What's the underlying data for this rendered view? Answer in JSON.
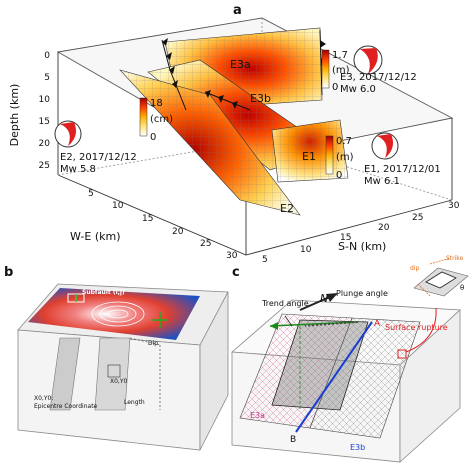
{
  "panel_a": {
    "label": "a",
    "axes": {
      "depth_label": "Depth (km)",
      "we_label": "W-E (km)",
      "sn_label": "S-N (km)",
      "depth_ticks": [
        "0",
        "5",
        "10",
        "15",
        "20",
        "25"
      ],
      "we_ticks": [
        "5",
        "10",
        "15",
        "20",
        "25",
        "30"
      ],
      "sn_ticks": [
        "5",
        "10",
        "15",
        "20",
        "25",
        "30"
      ]
    },
    "faults": {
      "e1": "E1",
      "e2": "E2",
      "e3a": "E3a",
      "e3b": "E3b"
    },
    "colorbar_e3": {
      "max": "1.7",
      "min": "0",
      "unit": "(m)"
    },
    "colorbar_e2": {
      "max": "18",
      "min": "0",
      "unit": "(cm)"
    },
    "colorbar_e1": {
      "max": "0.7",
      "min": "0",
      "unit": "(m)"
    },
    "events": {
      "e3": {
        "line1": "E3, 2017/12/12",
        "line2": "Mw 6.0"
      },
      "e2": {
        "line1": "E2, 2017/12/12",
        "line2": "Mw 5.8"
      },
      "e1": {
        "line1": "E1, 2017/12/01",
        "line2": "Mw 6.1"
      }
    },
    "slip_colors": [
      "#ffffff",
      "#ffe680",
      "#ffb000",
      "#ff4000",
      "#a00000"
    ]
  },
  "panel_b": {
    "label": "b",
    "subfault": "Subfault (i,j)",
    "xy_label": "X0,Y0",
    "epicentre_label": "X0,Y0:\nEpicentre Coordinate",
    "epicentre_line1": "X0,Y0:",
    "epicentre_line2": "Epicentre Coordinate",
    "dip_label": "Dip",
    "length_label": "Length"
  },
  "panel_c": {
    "label": "c",
    "trend": "Trend angle",
    "plunge": "Plunge angle",
    "north": "N",
    "surface_rupture": "Surface rupture",
    "point_a": "A",
    "point_b": "B",
    "e3a": "E3a",
    "e3b": "E3b",
    "inset_strike": "Strike",
    "inset_dip": "dip",
    "inset_theta": "θ"
  }
}
